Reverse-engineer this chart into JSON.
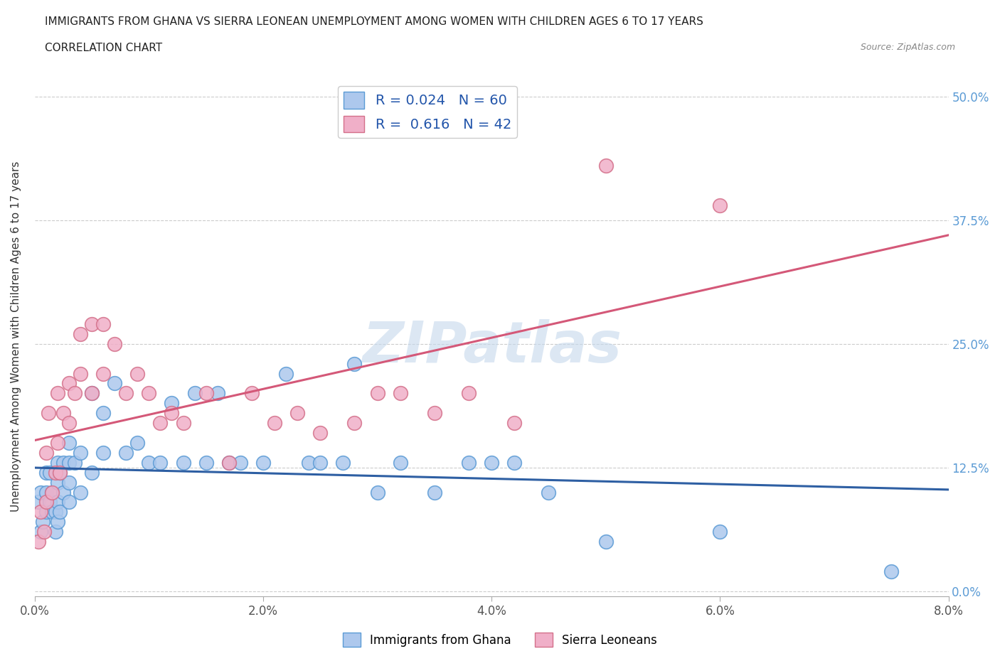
{
  "title_line1": "IMMIGRANTS FROM GHANA VS SIERRA LEONEAN UNEMPLOYMENT AMONG WOMEN WITH CHILDREN AGES 6 TO 17 YEARS",
  "title_line2": "CORRELATION CHART",
  "source": "Source: ZipAtlas.com",
  "ylabel": "Unemployment Among Women with Children Ages 6 to 17 years",
  "xlim": [
    0.0,
    0.08
  ],
  "ylim": [
    -0.005,
    0.52
  ],
  "xticks": [
    0.0,
    0.02,
    0.04,
    0.06,
    0.08
  ],
  "xtick_labels": [
    "0.0%",
    "2.0%",
    "4.0%",
    "6.0%",
    "8.0%"
  ],
  "ytick_labels_right": [
    "0.0%",
    "12.5%",
    "25.0%",
    "37.5%",
    "50.0%"
  ],
  "ytick_vals_right": [
    0.0,
    0.125,
    0.25,
    0.375,
    0.5
  ],
  "ghana_color": "#adc8ed",
  "ghana_edge": "#5b9bd5",
  "sl_color": "#f0afc8",
  "sl_edge": "#d4708a",
  "ghana_line_color": "#2e5fa3",
  "sl_line_color": "#d45878",
  "R_ghana": 0.024,
  "N_ghana": 60,
  "R_sl": 0.616,
  "N_sl": 42,
  "watermark": "ZIPatlas",
  "watermark_color": "#c5d8ec",
  "ghana_x": [
    0.0003,
    0.0005,
    0.0005,
    0.0007,
    0.001,
    0.001,
    0.001,
    0.0013,
    0.0013,
    0.0015,
    0.0015,
    0.0018,
    0.0018,
    0.002,
    0.002,
    0.002,
    0.002,
    0.0022,
    0.0022,
    0.0025,
    0.0025,
    0.003,
    0.003,
    0.003,
    0.003,
    0.0035,
    0.004,
    0.004,
    0.005,
    0.005,
    0.006,
    0.006,
    0.007,
    0.008,
    0.009,
    0.01,
    0.011,
    0.012,
    0.013,
    0.014,
    0.015,
    0.016,
    0.017,
    0.018,
    0.02,
    0.022,
    0.024,
    0.025,
    0.027,
    0.028,
    0.03,
    0.032,
    0.035,
    0.038,
    0.04,
    0.042,
    0.045,
    0.05,
    0.06,
    0.075
  ],
  "ghana_y": [
    0.09,
    0.06,
    0.1,
    0.07,
    0.1,
    0.12,
    0.08,
    0.09,
    0.12,
    0.08,
    0.1,
    0.08,
    0.06,
    0.07,
    0.09,
    0.11,
    0.13,
    0.08,
    0.12,
    0.1,
    0.13,
    0.09,
    0.11,
    0.13,
    0.15,
    0.13,
    0.1,
    0.14,
    0.12,
    0.2,
    0.14,
    0.18,
    0.21,
    0.14,
    0.15,
    0.13,
    0.13,
    0.19,
    0.13,
    0.2,
    0.13,
    0.2,
    0.13,
    0.13,
    0.13,
    0.22,
    0.13,
    0.13,
    0.13,
    0.23,
    0.1,
    0.13,
    0.1,
    0.13,
    0.13,
    0.13,
    0.1,
    0.05,
    0.06,
    0.02
  ],
  "sl_x": [
    0.0003,
    0.0005,
    0.0008,
    0.001,
    0.001,
    0.0012,
    0.0015,
    0.0018,
    0.002,
    0.002,
    0.0022,
    0.0025,
    0.003,
    0.003,
    0.0035,
    0.004,
    0.004,
    0.005,
    0.005,
    0.006,
    0.006,
    0.007,
    0.008,
    0.009,
    0.01,
    0.011,
    0.012,
    0.013,
    0.015,
    0.017,
    0.019,
    0.021,
    0.023,
    0.025,
    0.028,
    0.03,
    0.032,
    0.035,
    0.038,
    0.042,
    0.05,
    0.06
  ],
  "sl_y": [
    0.05,
    0.08,
    0.06,
    0.09,
    0.14,
    0.18,
    0.1,
    0.12,
    0.15,
    0.2,
    0.12,
    0.18,
    0.17,
    0.21,
    0.2,
    0.22,
    0.26,
    0.2,
    0.27,
    0.22,
    0.27,
    0.25,
    0.2,
    0.22,
    0.2,
    0.17,
    0.18,
    0.17,
    0.2,
    0.13,
    0.2,
    0.17,
    0.18,
    0.16,
    0.17,
    0.2,
    0.2,
    0.18,
    0.2,
    0.17,
    0.43,
    0.39
  ]
}
